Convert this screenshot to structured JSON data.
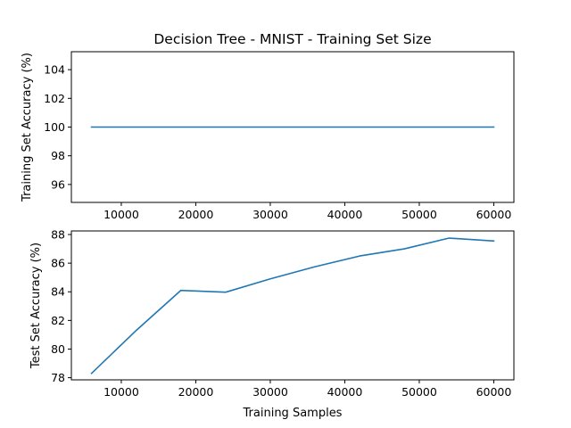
{
  "chart_data": [
    {
      "type": "line",
      "title": "Decision Tree - MNIST - Training Set Size",
      "xlabel": "",
      "ylabel": "Training Set Accuracy (%)",
      "xlim": [
        3300,
        62700
      ],
      "ylim": [
        94.75,
        105.25
      ],
      "xticks": [
        10000,
        20000,
        30000,
        40000,
        50000,
        60000
      ],
      "yticks": [
        96,
        98,
        100,
        102,
        104
      ],
      "grid": false,
      "series": [
        {
          "color": "#1f77b4",
          "x": [
            6000,
            12000,
            18000,
            24000,
            30000,
            36000,
            42000,
            48000,
            54000,
            60000
          ],
          "y": [
            100,
            100,
            100,
            100,
            100,
            100,
            100,
            100,
            100,
            100
          ]
        }
      ]
    },
    {
      "type": "line",
      "title": "",
      "xlabel": "Training Samples",
      "ylabel": "Test Set Accuracy (%)",
      "xlim": [
        3300,
        62700
      ],
      "ylim": [
        77.85,
        88.25
      ],
      "xticks": [
        10000,
        20000,
        30000,
        40000,
        50000,
        60000
      ],
      "yticks": [
        78,
        80,
        82,
        84,
        86,
        88
      ],
      "grid": false,
      "series": [
        {
          "color": "#1f77b4",
          "x": [
            6000,
            12000,
            18000,
            24000,
            30000,
            36000,
            42000,
            48000,
            54000,
            60000
          ],
          "y": [
            78.3,
            81.3,
            84.1,
            83.97,
            84.9,
            85.75,
            86.5,
            87.0,
            87.75,
            87.55
          ]
        }
      ]
    }
  ]
}
